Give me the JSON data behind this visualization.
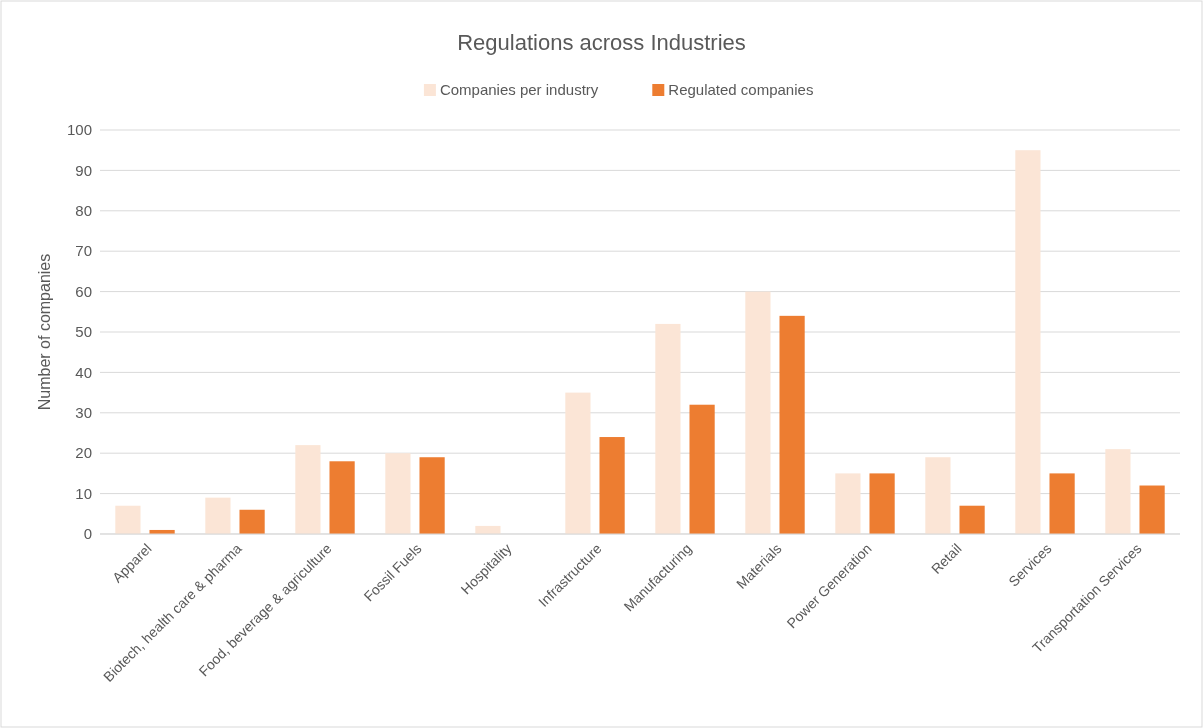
{
  "chart_data": {
    "type": "bar",
    "title": "Regulations across Industries",
    "ylabel": "Number of companies",
    "categories": [
      "Apparel",
      "Biotech, health care & pharma",
      "Food, beverage & agriculture",
      "Fossil Fuels",
      "Hospitality",
      "Infrastructure",
      "Manufacturing",
      "Materials",
      "Power Generation",
      "Retail",
      "Services",
      "Transportation Services"
    ],
    "series": [
      {
        "name": "Companies per industry",
        "color": "#fbe5d6",
        "values": [
          7,
          9,
          22,
          20,
          2,
          35,
          52,
          60,
          15,
          19,
          95,
          21
        ]
      },
      {
        "name": "Regulated companies",
        "color": "#ed7d31",
        "values": [
          1,
          6,
          18,
          19,
          0,
          24,
          32,
          54,
          15,
          7,
          15,
          12
        ]
      }
    ],
    "ylim": [
      0,
      100
    ],
    "yticks": [
      0,
      10,
      20,
      30,
      40,
      50,
      60,
      70,
      80,
      90,
      100
    ],
    "grid": "y",
    "legend": "top"
  }
}
